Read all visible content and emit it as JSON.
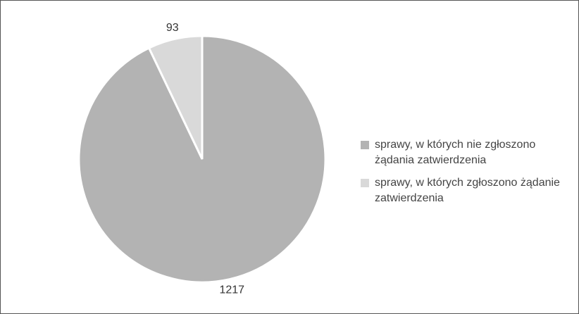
{
  "chart_data": {
    "type": "pie",
    "categories": [
      "sprawy, w których nie zgłoszono żądania zatwierdzenia",
      "sprawy, w których zgłoszono żądanie zatwierdzenia"
    ],
    "values": [
      1217,
      93
    ],
    "colors": [
      "#b3b3b3",
      "#d9d9d9"
    ],
    "legend": "right"
  }
}
